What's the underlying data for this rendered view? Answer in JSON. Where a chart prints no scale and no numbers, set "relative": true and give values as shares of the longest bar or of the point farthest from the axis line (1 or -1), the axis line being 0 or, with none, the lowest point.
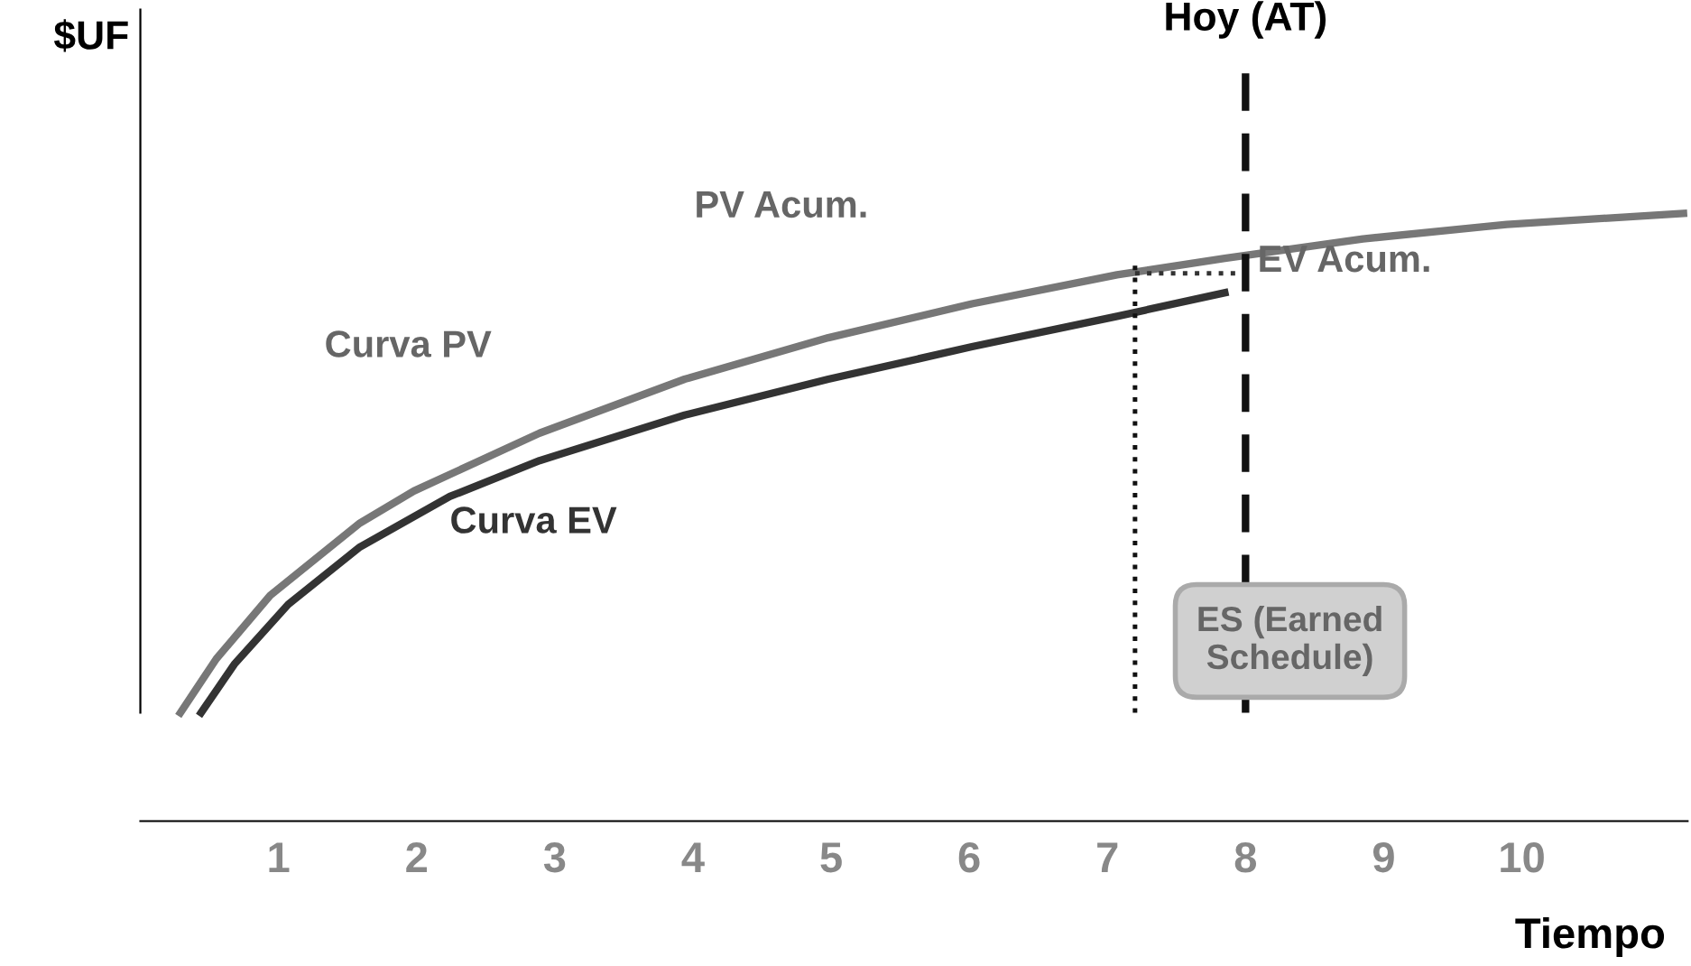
{
  "chart_data": {
    "type": "line",
    "relative": true,
    "ylabel": "$UF",
    "xlabel": "Tiempo",
    "xlim": [
      0,
      11.2
    ],
    "xticks": [
      1,
      2,
      3,
      4,
      5,
      6,
      7,
      8,
      9,
      10
    ],
    "series": [
      {
        "color": "#777777",
        "x": [
          0.29,
          0.55,
          0.94,
          1.59,
          1.98,
          2.89,
          3.94,
          4.98,
          6.02,
          7.07,
          7.85,
          8.85,
          9.89,
          11.17
        ],
        "values": [
          0,
          0.108,
          0.235,
          0.38,
          0.444,
          0.56,
          0.668,
          0.751,
          0.819,
          0.877,
          0.91,
          0.949,
          0.978,
          1.0
        ]
      },
      {
        "color": "#333333",
        "x": [
          0.44,
          0.68,
          1.07,
          1.59,
          2.24,
          2.89,
          3.94,
          4.98,
          6.02,
          7.07,
          7.85
        ],
        "values": [
          0,
          0.097,
          0.217,
          0.332,
          0.433,
          0.505,
          0.596,
          0.668,
          0.733,
          0.794,
          0.841
        ]
      },
      {
        "color": "#333333",
        "line_style": "dotted",
        "x": [
          7.2,
          8
        ],
        "values": [
          0.88,
          0.88
        ]
      }
    ],
    "ref_lines": [
      {
        "axis": "x",
        "value": 8,
        "label": "Hoy (AT)",
        "line_style": "dashed",
        "color": "#111111"
      },
      {
        "axis": "x",
        "value": 7.2,
        "line_style": "dotted",
        "color": "#111111"
      }
    ],
    "annotations": [
      "PV Acum.",
      "EV Acum.",
      "Curva PV",
      "Curva EV",
      "ES (Earned\nSchedule)"
    ],
    "grid": false,
    "legend": false
  }
}
